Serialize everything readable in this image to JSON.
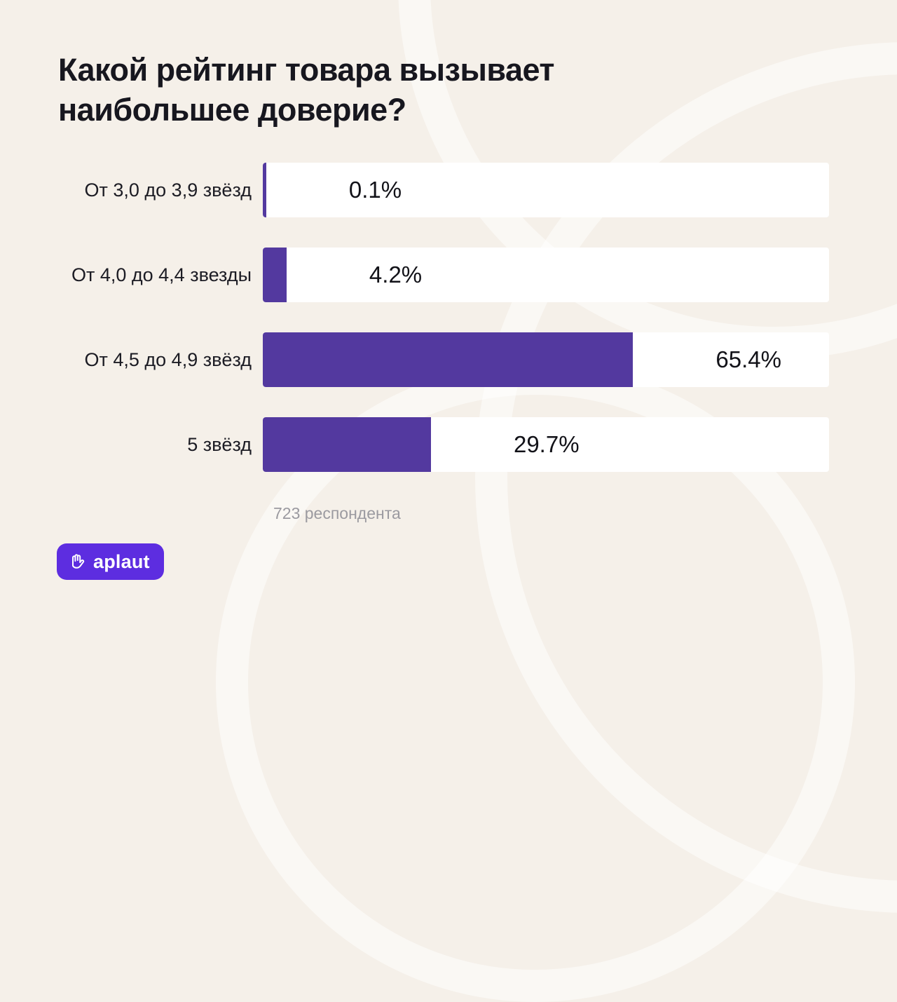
{
  "title": {
    "text": "Какой рейтинг товара вызывает наибольшее доверие?"
  },
  "footer": {
    "respondents": "723 респондента"
  },
  "logo": {
    "label": "aplaut"
  },
  "colors": {
    "background": "#f5f0e9",
    "bar_fill": "#53399f",
    "bar_track": "#ffffff",
    "title_text": "#17171f",
    "logo_background": "#5d2de0",
    "footer_text": "#9b9aa0"
  },
  "chart_data": {
    "type": "bar",
    "orientation": "horizontal",
    "title": "Какой рейтинг товара вызывает наибольшее доверие?",
    "categories": [
      "От 3,0 до 3,9 звёзд",
      "От 4,0 до 4,4 звезды",
      "От 4,5 до 4,9 звёзд",
      "5 звёзд"
    ],
    "values": [
      0.1,
      4.2,
      65.4,
      29.7
    ],
    "value_labels": [
      "0.1%",
      "4.2%",
      "65.4%",
      "29.7%"
    ],
    "unit": "%",
    "xlim": [
      0,
      100
    ],
    "grid": false,
    "legend": false,
    "annotation": "723 респондента"
  }
}
